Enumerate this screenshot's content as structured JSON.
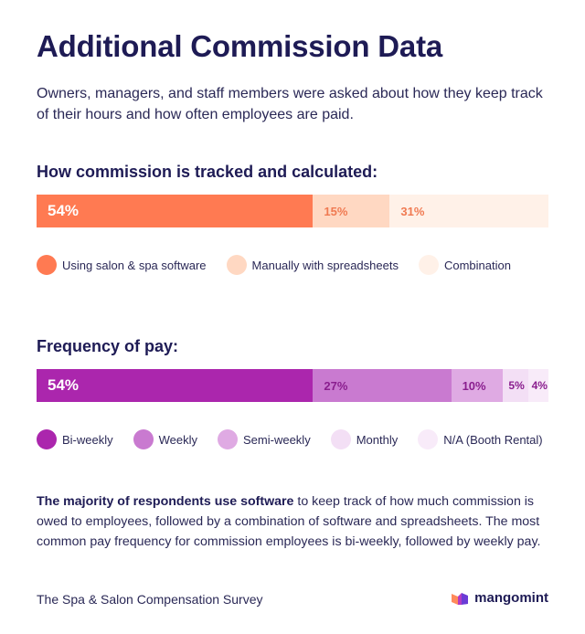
{
  "title": "Additional Commission Data",
  "subtitle": "Owners, managers, and staff members were asked about how they keep track of their hours and how often employees are paid.",
  "body": {
    "bold": "The majority of respondents use software",
    "rest": " to keep track of how much commission is owed to employees, followed by a combination of software and spreadsheets. The most common pay frequency for commission employees is bi-weekly, followed by weekly pay."
  },
  "footer": "The Spa & Salon Compensation Survey",
  "brand": {
    "name": "mangomint",
    "icon": "mangomint-logo-icon"
  },
  "chart_data": [
    {
      "type": "bar",
      "stacked": "horizontal-100",
      "title": "How commission is tracked and calculated:",
      "categories": [
        "Using salon & spa software",
        "Manually with spreadsheets",
        "Combination"
      ],
      "values": [
        54,
        15,
        31
      ],
      "labels": [
        "54%",
        "15%",
        "31%"
      ],
      "colors": [
        "#ff7a52",
        "#ffd8c2",
        "#fff1e8"
      ],
      "label_colors": [
        "#ffffff",
        "#f07a52",
        "#f07a52"
      ]
    },
    {
      "type": "bar",
      "stacked": "horizontal-100",
      "title": "Frequency of pay:",
      "categories": [
        "Bi-weekly",
        "Weekly",
        "Semi-weekly",
        "Monthly",
        "N/A (Booth Rental)"
      ],
      "values": [
        54,
        27,
        10,
        5,
        4
      ],
      "labels": [
        "54%",
        "27%",
        "10%",
        "5%",
        "4%"
      ],
      "colors": [
        "#ab26ad",
        "#c97ad0",
        "#dfaae3",
        "#f3dff5",
        "#f8ebf9"
      ],
      "label_colors": [
        "#ffffff",
        "#8a1e8e",
        "#8a1e8e",
        "#8a1e8e",
        "#8a1e8e"
      ]
    }
  ]
}
